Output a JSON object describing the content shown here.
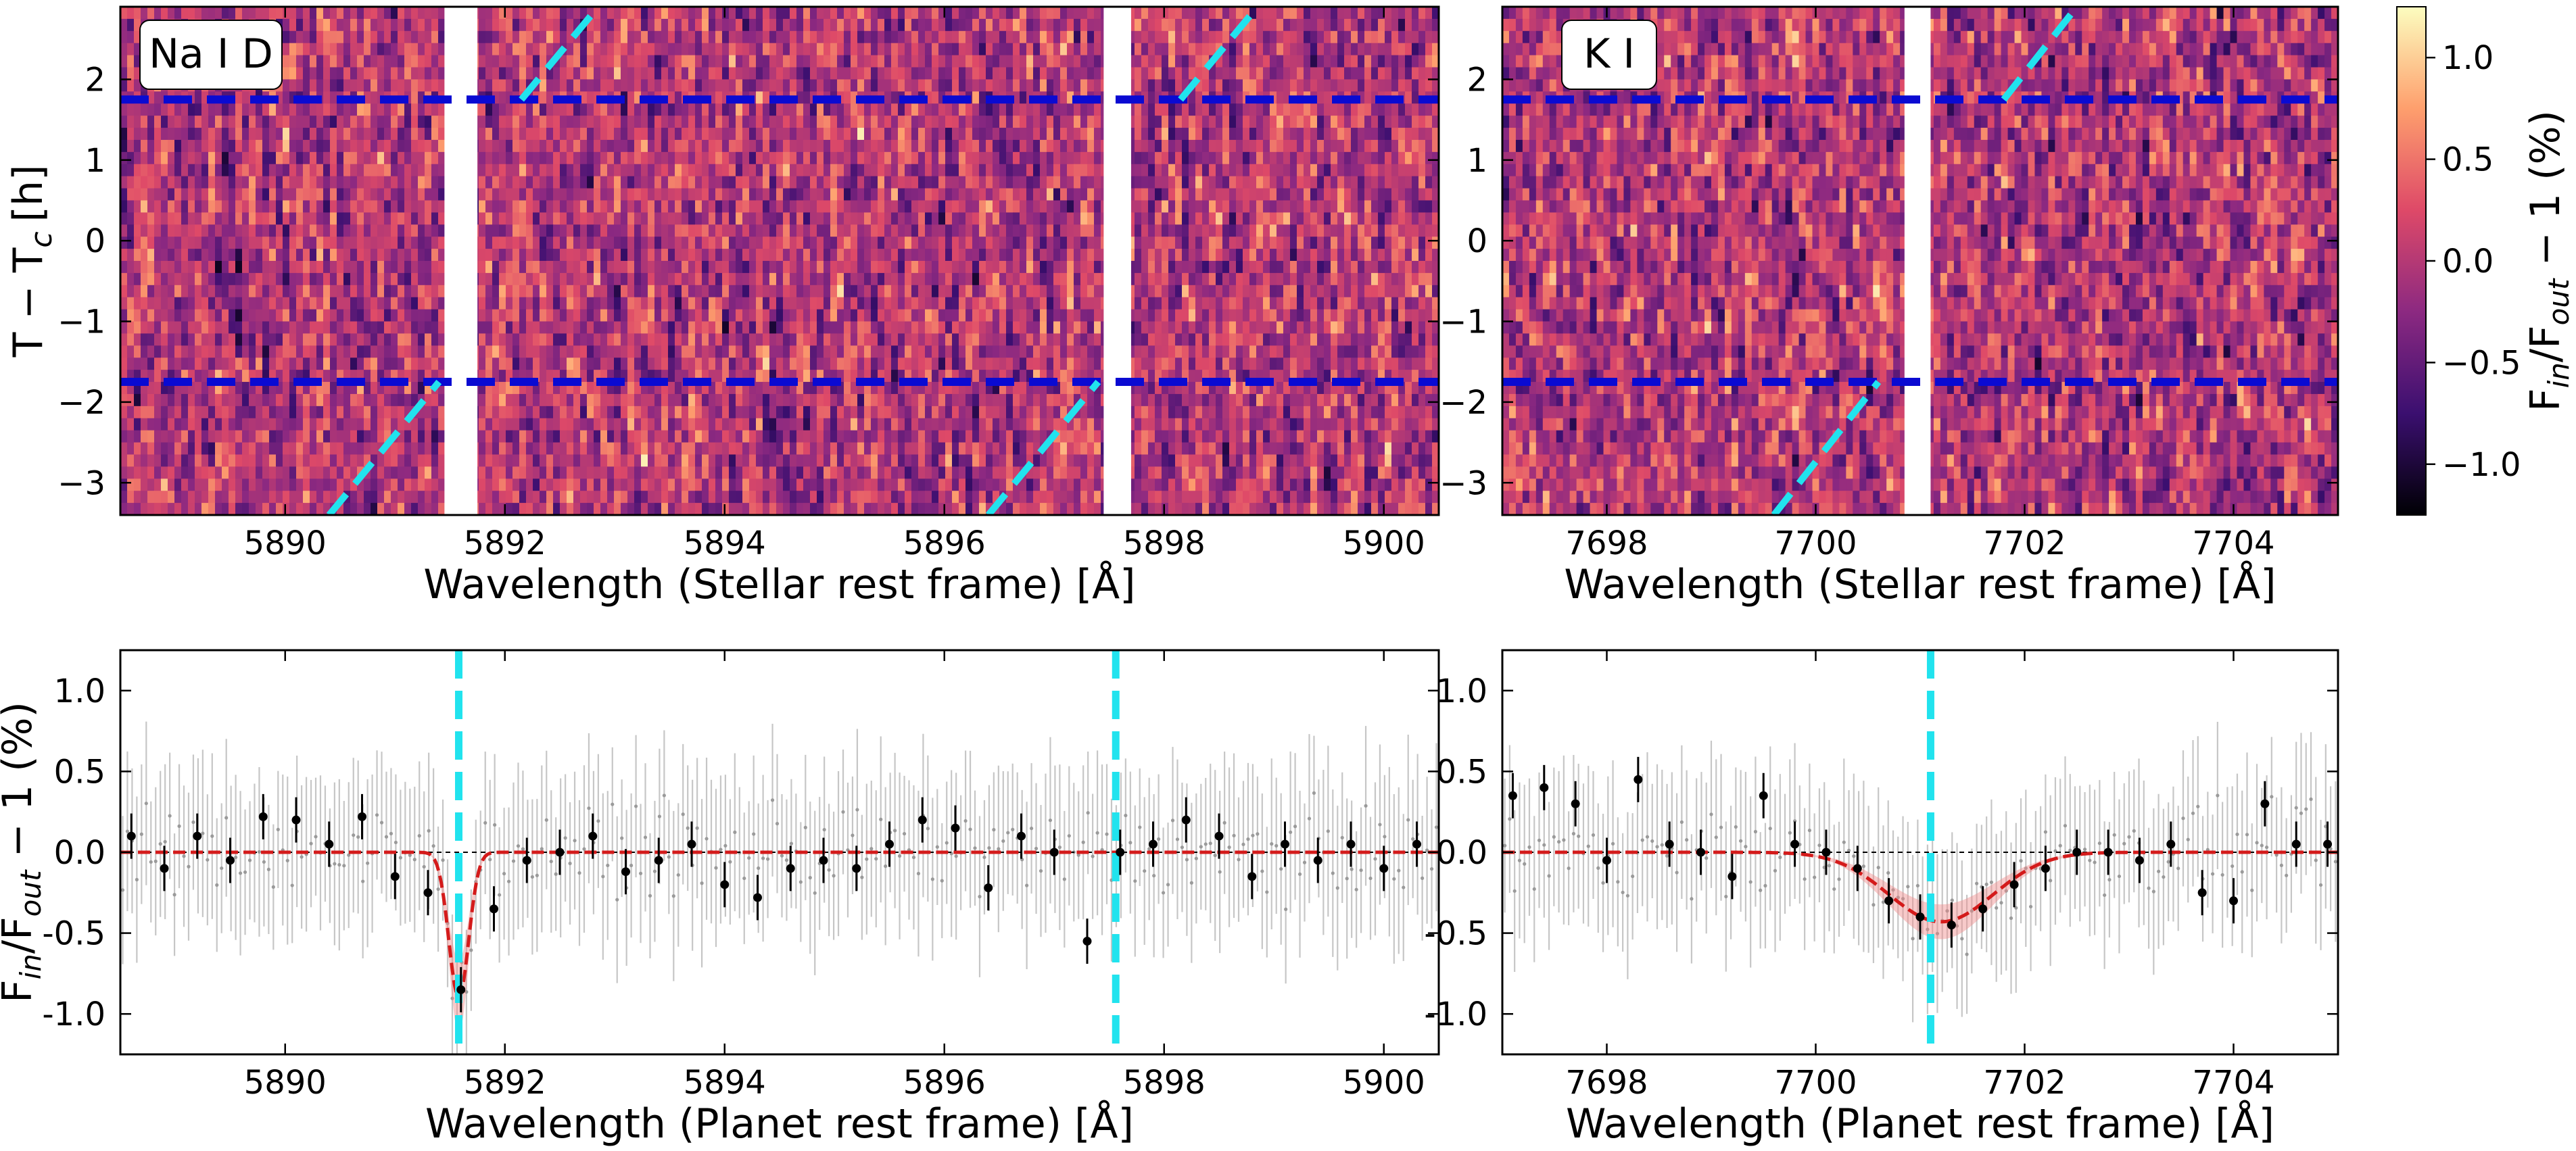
{
  "chart_data": [
    {
      "id": "nad-map",
      "type": "heatmap",
      "label": "Na I D",
      "xlabel": "Wavelength (Stellar rest frame) [Å]",
      "ylabel": "T − T_c [h]",
      "xlim": [
        5888.5,
        5900.5
      ],
      "ylim": [
        -3.4,
        2.9
      ],
      "xticks": [
        5890,
        5892,
        5894,
        5896,
        5898,
        5900
      ],
      "yticks": [
        -3,
        -2,
        -1,
        0,
        1,
        2
      ],
      "n_rows": 42,
      "masked_bands": [
        [
          5891.45,
          5891.75
        ],
        [
          5897.45,
          5897.7
        ]
      ],
      "contact_lines": [
        -1.75,
        1.75
      ],
      "planet_tracks": [
        {
          "x": [
            5890.4,
            5891.4
          ],
          "y": [
            -3.4,
            -1.75
          ]
        },
        {
          "x": [
            5892.15,
            5892.85
          ],
          "y": [
            1.75,
            2.9
          ]
        },
        {
          "x": [
            5896.4,
            5897.4
          ],
          "y": [
            -3.4,
            -1.75
          ]
        },
        {
          "x": [
            5898.15,
            5898.85
          ],
          "y": [
            1.75,
            2.9
          ]
        }
      ]
    },
    {
      "id": "k-map",
      "type": "heatmap",
      "label": "K I",
      "xlabel": "Wavelength (Stellar rest frame) [Å]",
      "xlim": [
        7697,
        7705
      ],
      "ylim": [
        -3.4,
        2.9
      ],
      "xticks": [
        7698,
        7700,
        7702,
        7704
      ],
      "yticks": [
        -3,
        -2,
        -1,
        0,
        1,
        2
      ],
      "n_rows": 42,
      "masked_bands": [
        [
          7700.85,
          7701.1
        ]
      ],
      "contact_lines": [
        -1.75,
        1.75
      ],
      "planet_tracks": [
        {
          "x": [
            7699.6,
            7700.6
          ],
          "y": [
            -3.4,
            -1.75
          ]
        },
        {
          "x": [
            7701.8,
            7702.5
          ],
          "y": [
            1.75,
            2.9
          ]
        }
      ]
    },
    {
      "id": "colorbar",
      "type": "colorbar",
      "label": "F_in/F_out − 1 (%)",
      "range": [
        -1.25,
        1.25
      ],
      "ticks": [
        -1.0,
        -0.5,
        0.0,
        0.5,
        1.0
      ],
      "colormap": [
        "#000004",
        "#3b0f70",
        "#8c2981",
        "#de4968",
        "#fe9f6d",
        "#fcfdbf"
      ]
    },
    {
      "id": "nad-spectrum",
      "type": "scatter",
      "xlabel": "Wavelength (Planet rest frame) [Å]",
      "ylabel": "F_in/F_out − 1 (%)",
      "xlim": [
        5888.5,
        5900.5
      ],
      "ylim": [
        -1.25,
        1.25
      ],
      "xticks": [
        5890,
        5892,
        5894,
        5896,
        5898,
        5900
      ],
      "yticks": [
        -1.0,
        -0.5,
        0.0,
        0.5,
        1.0
      ],
      "line_centers": [
        5891.58,
        5897.56
      ],
      "binned": {
        "x": [
          5888.6,
          5888.9,
          5889.2,
          5889.5,
          5889.8,
          5890.1,
          5890.4,
          5890.7,
          5891.0,
          5891.3,
          5891.6,
          5891.9,
          5892.2,
          5892.5,
          5892.8,
          5893.1,
          5893.4,
          5893.7,
          5894.0,
          5894.3,
          5894.6,
          5894.9,
          5895.2,
          5895.5,
          5895.8,
          5896.1,
          5896.4,
          5896.7,
          5897.0,
          5897.3,
          5897.6,
          5897.9,
          5898.2,
          5898.5,
          5898.8,
          5899.1,
          5899.4,
          5899.7,
          5900.0,
          5900.3
        ],
        "y": [
          0.1,
          -0.1,
          0.1,
          -0.05,
          0.22,
          0.2,
          0.05,
          0.22,
          -0.15,
          -0.25,
          -0.85,
          -0.35,
          -0.05,
          0.0,
          0.1,
          -0.12,
          -0.05,
          0.05,
          -0.2,
          -0.28,
          -0.1,
          -0.05,
          -0.1,
          0.05,
          0.2,
          0.15,
          -0.22,
          0.1,
          0.0,
          -0.55,
          0.0,
          0.05,
          0.2,
          0.1,
          -0.15,
          0.05,
          -0.05,
          0.05,
          -0.1,
          0.05
        ]
      },
      "model": {
        "type": "gaussian",
        "depth": -0.9,
        "center": 5891.58,
        "sigma": 0.09,
        "center2": 5897.56,
        "depth2": 0.0
      }
    },
    {
      "id": "k-spectrum",
      "type": "scatter",
      "xlabel": "Wavelength (Planet rest frame) [Å]",
      "xlim": [
        7697,
        7705
      ],
      "ylim": [
        -1.25,
        1.25
      ],
      "xticks": [
        7698,
        7700,
        7702,
        7704
      ],
      "yticks": [
        -1.0,
        -0.5,
        0.0,
        0.5,
        1.0
      ],
      "line_centers": [
        7701.1
      ],
      "binned": {
        "x": [
          7697.1,
          7697.4,
          7697.7,
          7698.0,
          7698.3,
          7698.6,
          7698.9,
          7699.2,
          7699.5,
          7699.8,
          7700.1,
          7700.4,
          7700.7,
          7701.0,
          7701.3,
          7701.6,
          7701.9,
          7702.2,
          7702.5,
          7702.8,
          7703.1,
          7703.4,
          7703.7,
          7704.0,
          7704.3,
          7704.6,
          7704.9
        ],
        "y": [
          0.35,
          0.4,
          0.3,
          -0.05,
          0.45,
          0.05,
          0.0,
          -0.15,
          0.35,
          0.05,
          0.0,
          -0.1,
          -0.3,
          -0.4,
          -0.45,
          -0.35,
          -0.2,
          -0.1,
          0.0,
          0.0,
          -0.05,
          0.05,
          -0.25,
          -0.3,
          0.3,
          0.05,
          0.05
        ]
      },
      "model": {
        "type": "gaussian",
        "depth": -0.43,
        "center": 7701.2,
        "sigma": 0.5
      }
    }
  ],
  "tick_labels": {
    "nad_x": [
      "5890",
      "5892",
      "5894",
      "5896",
      "5898",
      "5900"
    ],
    "k_x": [
      "7698",
      "7700",
      "7702",
      "7704"
    ],
    "map_y": [
      "−3",
      "−2",
      "−1",
      "0",
      "1",
      "2"
    ],
    "spec_y": [
      "-1.0",
      "-0.5",
      "0.0",
      "0.5",
      "1.0"
    ],
    "cbar": [
      "−1.0",
      "−0.5",
      "0.0",
      "0.5",
      "1.0"
    ]
  },
  "labels": {
    "nad_tag": "Na I D",
    "k_tag": "K I",
    "map_ylabel": "T − T",
    "map_ylabel_sub": "c",
    "map_ylabel_unit": "[h]",
    "stellar_xlabel": "Wavelength (Stellar rest frame) [Å]",
    "planet_xlabel": "Wavelength (Planet rest frame) [Å]",
    "flux_label_F1": "F",
    "flux_label_in": "in",
    "flux_label_F2": "/F",
    "flux_label_out": "out",
    "flux_label_tail": " − 1 (%)"
  }
}
